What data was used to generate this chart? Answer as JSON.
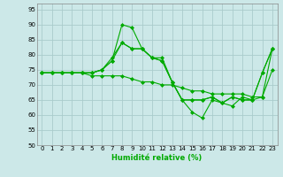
{
  "xlabel": "Humidité relative (%)",
  "background_color": "#cce8e8",
  "grid_color": "#aacccc",
  "line_color": "#00aa00",
  "ylim": [
    50,
    97
  ],
  "xlim": [
    -0.5,
    23.5
  ],
  "yticks": [
    50,
    55,
    60,
    65,
    70,
    75,
    80,
    85,
    90,
    95
  ],
  "xticks": [
    0,
    1,
    2,
    3,
    4,
    5,
    6,
    7,
    8,
    9,
    10,
    11,
    12,
    13,
    14,
    15,
    16,
    17,
    18,
    19,
    20,
    21,
    22,
    23
  ],
  "series": [
    [
      74,
      74,
      74,
      74,
      74,
      74,
      75,
      78,
      90,
      89,
      82,
      79,
      79,
      71,
      65,
      61,
      59,
      65,
      64,
      63,
      66,
      65,
      66,
      82
    ],
    [
      74,
      74,
      74,
      74,
      74,
      74,
      75,
      78,
      84,
      82,
      82,
      79,
      78,
      71,
      65,
      65,
      65,
      66,
      64,
      66,
      65,
      65,
      74,
      82
    ],
    [
      74,
      74,
      74,
      74,
      74,
      73,
      73,
      73,
      73,
      72,
      71,
      71,
      70,
      70,
      69,
      68,
      68,
      67,
      67,
      67,
      67,
      66,
      66,
      75
    ],
    [
      74,
      74,
      74,
      74,
      74,
      74,
      75,
      79,
      84,
      82,
      82,
      79,
      78,
      71,
      65,
      65,
      65,
      66,
      64,
      66,
      65,
      65,
      74,
      82
    ]
  ],
  "xlabel_fontsize": 6,
  "tick_fontsize": 5,
  "marker": "D",
  "markersize": 2,
  "linewidth": 0.8
}
